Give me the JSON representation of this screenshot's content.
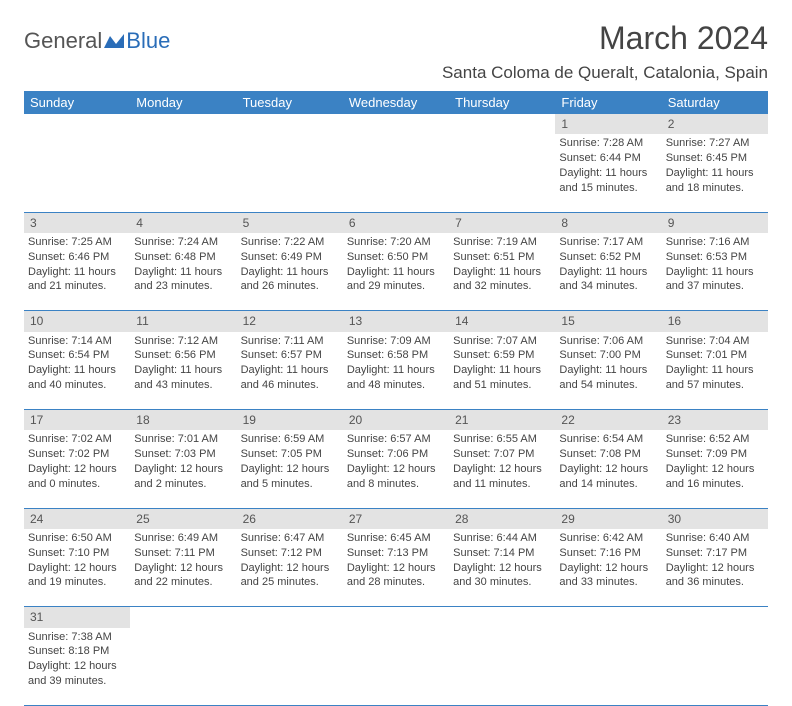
{
  "logo": {
    "part1": "General",
    "part2": "Blue"
  },
  "title": "March 2024",
  "location": "Santa Coloma de Queralt, Catalonia, Spain",
  "colors": {
    "header_bg": "#3b82c4",
    "header_text": "#ffffff",
    "daynum_bg": "#e3e3e3",
    "text": "#444444",
    "logo_gray": "#555555",
    "logo_blue": "#2a6db8",
    "border": "#3b82c4"
  },
  "weekdays": [
    "Sunday",
    "Monday",
    "Tuesday",
    "Wednesday",
    "Thursday",
    "Friday",
    "Saturday"
  ],
  "days": {
    "1": {
      "sunrise": "7:28 AM",
      "sunset": "6:44 PM",
      "daylight": "11 hours and 15 minutes."
    },
    "2": {
      "sunrise": "7:27 AM",
      "sunset": "6:45 PM",
      "daylight": "11 hours and 18 minutes."
    },
    "3": {
      "sunrise": "7:25 AM",
      "sunset": "6:46 PM",
      "daylight": "11 hours and 21 minutes."
    },
    "4": {
      "sunrise": "7:24 AM",
      "sunset": "6:48 PM",
      "daylight": "11 hours and 23 minutes."
    },
    "5": {
      "sunrise": "7:22 AM",
      "sunset": "6:49 PM",
      "daylight": "11 hours and 26 minutes."
    },
    "6": {
      "sunrise": "7:20 AM",
      "sunset": "6:50 PM",
      "daylight": "11 hours and 29 minutes."
    },
    "7": {
      "sunrise": "7:19 AM",
      "sunset": "6:51 PM",
      "daylight": "11 hours and 32 minutes."
    },
    "8": {
      "sunrise": "7:17 AM",
      "sunset": "6:52 PM",
      "daylight": "11 hours and 34 minutes."
    },
    "9": {
      "sunrise": "7:16 AM",
      "sunset": "6:53 PM",
      "daylight": "11 hours and 37 minutes."
    },
    "10": {
      "sunrise": "7:14 AM",
      "sunset": "6:54 PM",
      "daylight": "11 hours and 40 minutes."
    },
    "11": {
      "sunrise": "7:12 AM",
      "sunset": "6:56 PM",
      "daylight": "11 hours and 43 minutes."
    },
    "12": {
      "sunrise": "7:11 AM",
      "sunset": "6:57 PM",
      "daylight": "11 hours and 46 minutes."
    },
    "13": {
      "sunrise": "7:09 AM",
      "sunset": "6:58 PM",
      "daylight": "11 hours and 48 minutes."
    },
    "14": {
      "sunrise": "7:07 AM",
      "sunset": "6:59 PM",
      "daylight": "11 hours and 51 minutes."
    },
    "15": {
      "sunrise": "7:06 AM",
      "sunset": "7:00 PM",
      "daylight": "11 hours and 54 minutes."
    },
    "16": {
      "sunrise": "7:04 AM",
      "sunset": "7:01 PM",
      "daylight": "11 hours and 57 minutes."
    },
    "17": {
      "sunrise": "7:02 AM",
      "sunset": "7:02 PM",
      "daylight": "12 hours and 0 minutes."
    },
    "18": {
      "sunrise": "7:01 AM",
      "sunset": "7:03 PM",
      "daylight": "12 hours and 2 minutes."
    },
    "19": {
      "sunrise": "6:59 AM",
      "sunset": "7:05 PM",
      "daylight": "12 hours and 5 minutes."
    },
    "20": {
      "sunrise": "6:57 AM",
      "sunset": "7:06 PM",
      "daylight": "12 hours and 8 minutes."
    },
    "21": {
      "sunrise": "6:55 AM",
      "sunset": "7:07 PM",
      "daylight": "12 hours and 11 minutes."
    },
    "22": {
      "sunrise": "6:54 AM",
      "sunset": "7:08 PM",
      "daylight": "12 hours and 14 minutes."
    },
    "23": {
      "sunrise": "6:52 AM",
      "sunset": "7:09 PM",
      "daylight": "12 hours and 16 minutes."
    },
    "24": {
      "sunrise": "6:50 AM",
      "sunset": "7:10 PM",
      "daylight": "12 hours and 19 minutes."
    },
    "25": {
      "sunrise": "6:49 AM",
      "sunset": "7:11 PM",
      "daylight": "12 hours and 22 minutes."
    },
    "26": {
      "sunrise": "6:47 AM",
      "sunset": "7:12 PM",
      "daylight": "12 hours and 25 minutes."
    },
    "27": {
      "sunrise": "6:45 AM",
      "sunset": "7:13 PM",
      "daylight": "12 hours and 28 minutes."
    },
    "28": {
      "sunrise": "6:44 AM",
      "sunset": "7:14 PM",
      "daylight": "12 hours and 30 minutes."
    },
    "29": {
      "sunrise": "6:42 AM",
      "sunset": "7:16 PM",
      "daylight": "12 hours and 33 minutes."
    },
    "30": {
      "sunrise": "6:40 AM",
      "sunset": "7:17 PM",
      "daylight": "12 hours and 36 minutes."
    },
    "31": {
      "sunrise": "7:38 AM",
      "sunset": "8:18 PM",
      "daylight": "12 hours and 39 minutes."
    }
  },
  "labels": {
    "sunrise": "Sunrise:",
    "sunset": "Sunset:",
    "daylight": "Daylight:"
  },
  "layout": {
    "first_weekday_index": 5,
    "num_days": 31,
    "font_title_pt": 32,
    "font_location_pt": 17,
    "font_header_pt": 13,
    "font_cell_pt": 11
  }
}
